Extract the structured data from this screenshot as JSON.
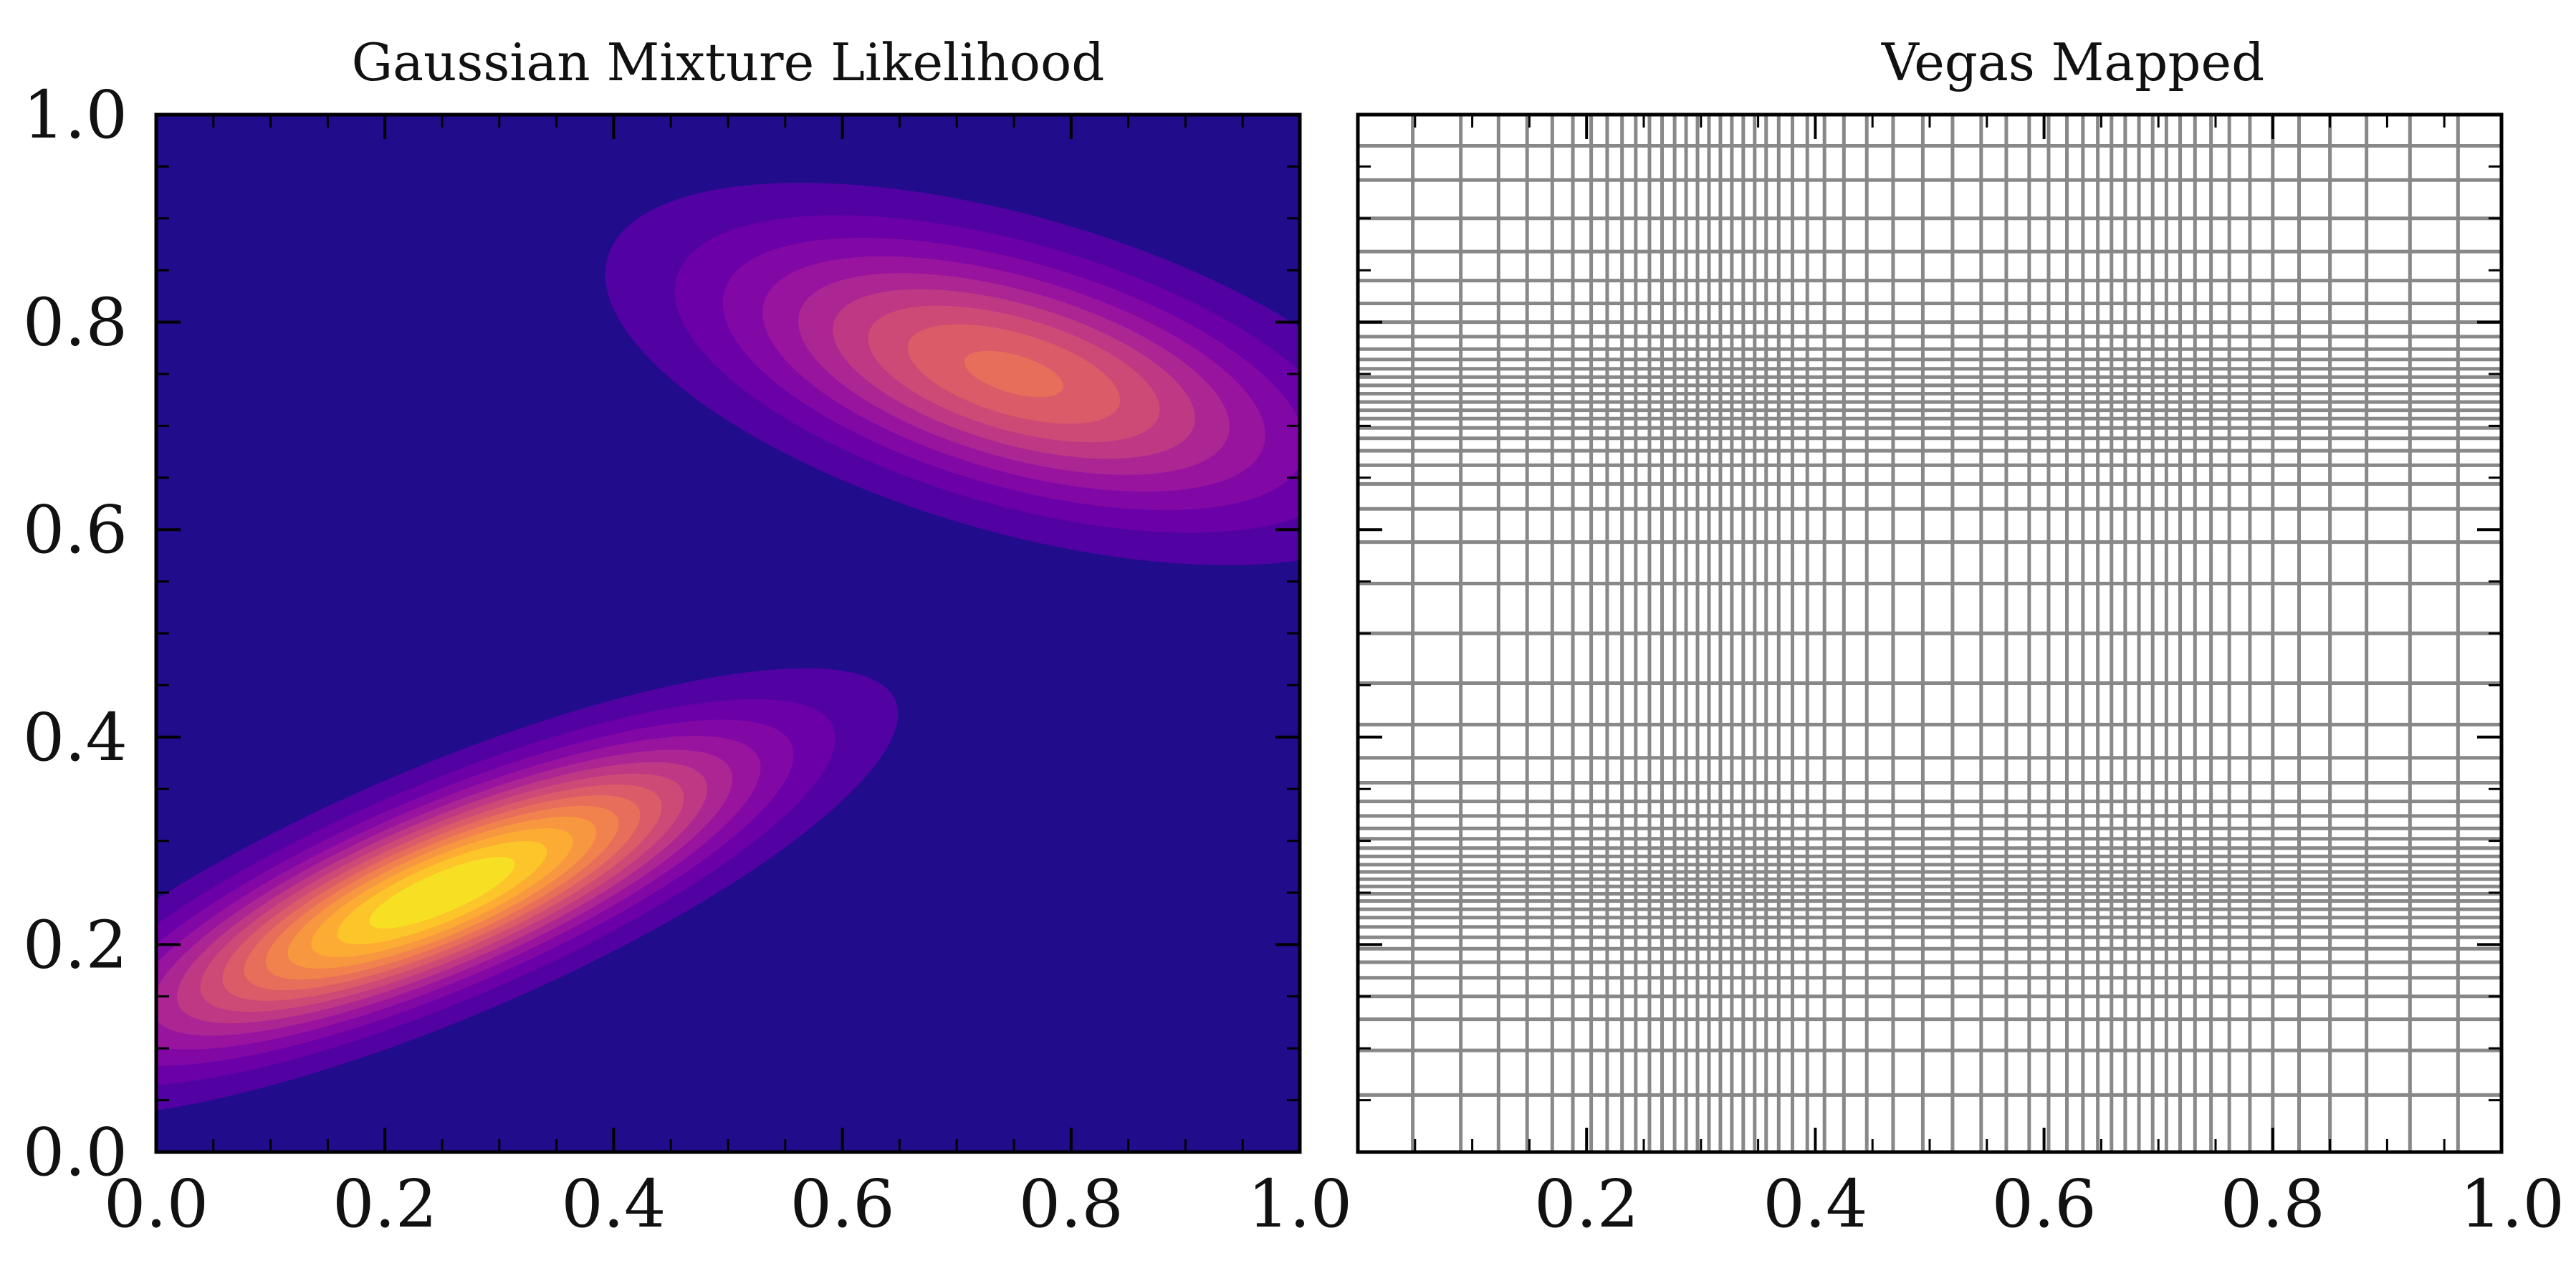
{
  "chart_data": [
    {
      "type": "heatmap",
      "title": "Gaussian Mixture Likelihood",
      "xlabel": "",
      "ylabel": "",
      "xlim": [
        0.0,
        1.0
      ],
      "ylim": [
        0.0,
        1.0
      ],
      "xticks": [
        "0.0",
        "0.2",
        "0.4",
        "0.6",
        "0.8",
        "1.0"
      ],
      "yticks": [
        "0.0",
        "0.2",
        "0.4",
        "0.6",
        "0.8",
        "1.0"
      ],
      "colormap": "plasma",
      "background_color": "#210C8C",
      "contour_levels": 14,
      "components": [
        {
          "name": "lower-left",
          "center": [
            0.25,
            0.25
          ],
          "sigma_major": 0.185,
          "sigma_minor": 0.052,
          "angle_deg": 23,
          "peak": 1.0
        },
        {
          "name": "upper-right",
          "center": [
            0.75,
            0.75
          ],
          "sigma_major": 0.175,
          "sigma_minor": 0.072,
          "angle_deg": -16,
          "peak": 0.62
        }
      ]
    },
    {
      "type": "grid",
      "title": "Vegas Mapped",
      "xlabel": "",
      "ylabel": "",
      "xlim": [
        0.0,
        1.0
      ],
      "ylim": [
        0.0,
        1.0
      ],
      "xticks": [
        "0.2",
        "0.4",
        "0.6",
        "0.8",
        "1.0"
      ],
      "line_color": "#888888",
      "grid_x": [
        0.0,
        0.048,
        0.09,
        0.123,
        0.148,
        0.17,
        0.188,
        0.204,
        0.218,
        0.231,
        0.243,
        0.255,
        0.266,
        0.277,
        0.287,
        0.297,
        0.307,
        0.317,
        0.327,
        0.337,
        0.347,
        0.357,
        0.368,
        0.38,
        0.393,
        0.408,
        0.425,
        0.445,
        0.468,
        0.494,
        0.52,
        0.545,
        0.567,
        0.587,
        0.604,
        0.62,
        0.634,
        0.647,
        0.659,
        0.671,
        0.683,
        0.695,
        0.707,
        0.719,
        0.732,
        0.746,
        0.762,
        0.78,
        0.8,
        0.823,
        0.85,
        0.882,
        0.92,
        0.962,
        1.0
      ],
      "grid_y": [
        0.0,
        0.055,
        0.098,
        0.128,
        0.15,
        0.168,
        0.183,
        0.196,
        0.207,
        0.217,
        0.226,
        0.234,
        0.242,
        0.249,
        0.256,
        0.263,
        0.27,
        0.277,
        0.285,
        0.293,
        0.302,
        0.312,
        0.324,
        0.338,
        0.356,
        0.38,
        0.412,
        0.452,
        0.5,
        0.548,
        0.588,
        0.62,
        0.644,
        0.662,
        0.676,
        0.688,
        0.698,
        0.707,
        0.715,
        0.723,
        0.731,
        0.739,
        0.747,
        0.755,
        0.764,
        0.774,
        0.786,
        0.8,
        0.818,
        0.84,
        0.868,
        0.9,
        0.937,
        0.97,
        1.0
      ]
    }
  ]
}
